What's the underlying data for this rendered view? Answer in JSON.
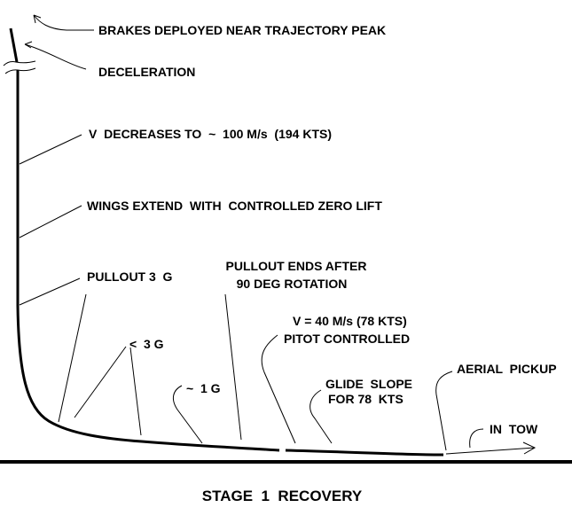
{
  "labels": {
    "brakes": "BRAKES DEPLOYED NEAR TRAJECTORY PEAK",
    "deceleration": "DECELERATION",
    "v_decreases": "V  DECREASES TO  ~  100 M/s  (194 KTS)",
    "wings_extend": "WINGS EXTEND  WITH  CONTROLLED ZERO LIFT",
    "pullout": "PULLOUT 3  G",
    "pullout_ends_1": "PULLOUT ENDS AFTER",
    "pullout_ends_2": "90 DEG ROTATION",
    "v40_1": "V = 40 M/s (78 KTS)",
    "v40_2": "PITOT CONTROLLED",
    "less_3g": "<  3 G",
    "approx_1g": "~  1 G",
    "glide_1": "GLIDE  SLOPE",
    "glide_2": "FOR 78  KTS",
    "aerial_pickup": "AERIAL  PICKUP",
    "in_tow": "IN  TOW"
  },
  "title": "STAGE  1  RECOVERY"
}
